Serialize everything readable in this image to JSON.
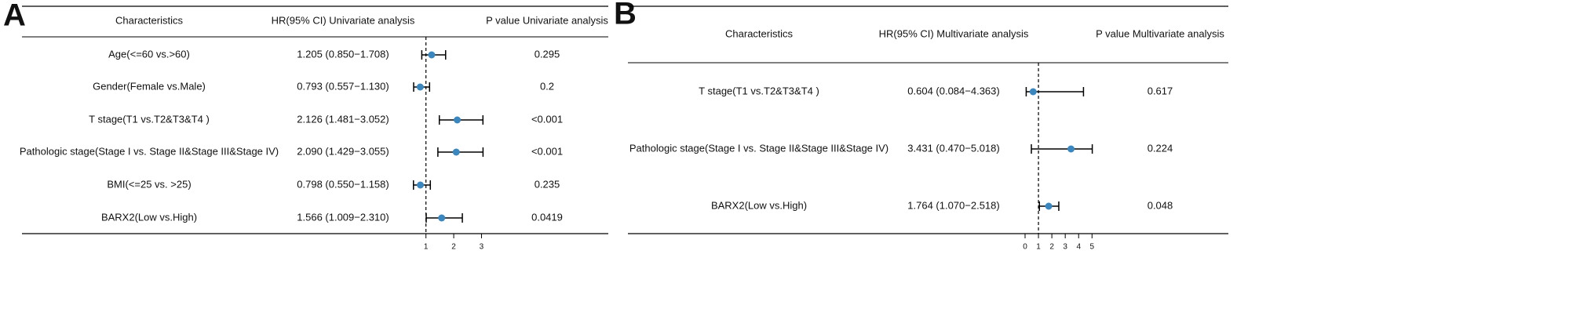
{
  "chart_data": [
    {
      "type": "forest",
      "panel_label": "A",
      "columns": [
        "Characteristics",
        "HR(95% CI) Univariate analysis",
        "P value Univariate analysis"
      ],
      "categories": [
        "Age(<=60 vs.>60)",
        "Gender(Female vs.Male)",
        "T stage(T1 vs.T2&T3&T4 )",
        "Pathologic stage(Stage I vs. Stage II&Stage III&Stage IV)",
        "BMI(<=25 vs. >25)",
        "BARX2(Low vs.High)"
      ],
      "values": [
        1.205,
        0.793,
        2.126,
        2.09,
        0.798,
        1.566
      ],
      "lower": [
        0.85,
        0.557,
        1.481,
        1.429,
        0.55,
        1.009
      ],
      "upper": [
        1.708,
        1.13,
        3.052,
        3.055,
        1.158,
        2.31
      ],
      "value_labels": [
        "1.205 (0.850−1.708)",
        "0.793 (0.557−1.130)",
        "2.126 (1.481−3.052)",
        "2.090 (1.429−3.055)",
        "0.798 (0.550−1.158)",
        "1.566 (1.009−2.310)"
      ],
      "p_values": [
        "0.295",
        "0.2",
        "<0.001",
        "<0.001",
        "0.235",
        "0.0419"
      ],
      "reference": 1,
      "xlim": [
        0.5,
        3.1
      ],
      "xticks": [
        1,
        2,
        3
      ],
      "color": "#3a87c0"
    },
    {
      "type": "forest",
      "panel_label": "B",
      "columns": [
        "Characteristics",
        "HR(95% CI) Multivariate analysis",
        "P value Multivariate analysis"
      ],
      "categories": [
        "T stage(T1 vs.T2&T3&T4 )",
        "Pathologic stage(Stage I vs. Stage II&Stage III&Stage IV)",
        "BARX2(Low vs.High)"
      ],
      "values": [
        0.604,
        3.431,
        1.764
      ],
      "lower": [
        0.084,
        0.47,
        1.07
      ],
      "upper": [
        4.363,
        5.018,
        2.518
      ],
      "value_labels": [
        "0.604 (0.084−4.363)",
        "3.431 (0.470−5.018)",
        "1.764 (1.070−2.518)"
      ],
      "p_values": [
        "0.617",
        "0.224",
        "0.048"
      ],
      "reference": 1,
      "xlim": [
        0,
        5.1
      ],
      "xticks": [
        0,
        1,
        2,
        3,
        4,
        5
      ],
      "color": "#3a87c0"
    }
  ]
}
